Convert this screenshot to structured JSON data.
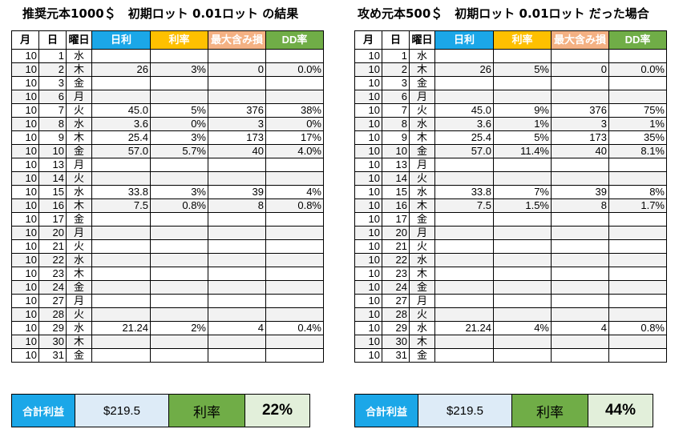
{
  "left": {
    "title": "推奨元本1000＄　初期ロット 0.01ロット の結果",
    "headers": [
      "月",
      "日",
      "曜日",
      "日利",
      "利率",
      "最大含み損",
      "DD率"
    ],
    "rows": [
      [
        "10",
        "1",
        "水",
        "",
        "",
        "",
        ""
      ],
      [
        "10",
        "2",
        "木",
        "26",
        "3%",
        "0",
        "0.0%"
      ],
      [
        "10",
        "3",
        "金",
        "",
        "",
        "",
        ""
      ],
      [
        "10",
        "6",
        "月",
        "",
        "",
        "",
        ""
      ],
      [
        "10",
        "7",
        "火",
        "45.0",
        "5%",
        "376",
        "38%"
      ],
      [
        "10",
        "8",
        "水",
        "3.6",
        "0%",
        "3",
        "0%"
      ],
      [
        "10",
        "9",
        "木",
        "25.4",
        "3%",
        "173",
        "17%"
      ],
      [
        "10",
        "10",
        "金",
        "57.0",
        "5.7%",
        "40",
        "4.0%"
      ],
      [
        "10",
        "13",
        "月",
        "",
        "",
        "",
        ""
      ],
      [
        "10",
        "14",
        "火",
        "",
        "",
        "",
        ""
      ],
      [
        "10",
        "15",
        "水",
        "33.8",
        "3%",
        "39",
        "4%"
      ],
      [
        "10",
        "16",
        "木",
        "7.5",
        "0.8%",
        "8",
        "0.8%"
      ],
      [
        "10",
        "17",
        "金",
        "",
        "",
        "",
        ""
      ],
      [
        "10",
        "20",
        "月",
        "",
        "",
        "",
        ""
      ],
      [
        "10",
        "21",
        "火",
        "",
        "",
        "",
        ""
      ],
      [
        "10",
        "22",
        "水",
        "",
        "",
        "",
        ""
      ],
      [
        "10",
        "23",
        "木",
        "",
        "",
        "",
        ""
      ],
      [
        "10",
        "24",
        "金",
        "",
        "",
        "",
        ""
      ],
      [
        "10",
        "27",
        "月",
        "",
        "",
        "",
        ""
      ],
      [
        "10",
        "28",
        "火",
        "",
        "",
        "",
        ""
      ],
      [
        "10",
        "29",
        "水",
        "21.24",
        "2%",
        "4",
        "0.4%"
      ],
      [
        "10",
        "30",
        "木",
        "",
        "",
        "",
        ""
      ],
      [
        "10",
        "31",
        "金",
        "",
        "",
        "",
        ""
      ]
    ],
    "summary": {
      "label": "合計利益",
      "total": "$219.5",
      "rate_label": "利率",
      "rate": "22%"
    }
  },
  "right": {
    "title": "攻め元本500＄　初期ロット 0.01ロット だった場合",
    "headers": [
      "月",
      "日",
      "曜日",
      "日利",
      "利率",
      "最大含み損",
      "DD率"
    ],
    "rows": [
      [
        "10",
        "1",
        "水",
        "",
        "",
        "",
        ""
      ],
      [
        "10",
        "2",
        "木",
        "26",
        "5%",
        "0",
        "0.0%"
      ],
      [
        "10",
        "3",
        "金",
        "",
        "",
        "",
        ""
      ],
      [
        "10",
        "6",
        "月",
        "",
        "",
        "",
        ""
      ],
      [
        "10",
        "7",
        "火",
        "45.0",
        "9%",
        "376",
        "75%"
      ],
      [
        "10",
        "8",
        "水",
        "3.6",
        "1%",
        "3",
        "1%"
      ],
      [
        "10",
        "9",
        "木",
        "25.4",
        "5%",
        "173",
        "35%"
      ],
      [
        "10",
        "10",
        "金",
        "57.0",
        "11.4%",
        "40",
        "8.1%"
      ],
      [
        "10",
        "13",
        "月",
        "",
        "",
        "",
        ""
      ],
      [
        "10",
        "14",
        "火",
        "",
        "",
        "",
        ""
      ],
      [
        "10",
        "15",
        "水",
        "33.8",
        "7%",
        "39",
        "8%"
      ],
      [
        "10",
        "16",
        "木",
        "7.5",
        "1.5%",
        "8",
        "1.7%"
      ],
      [
        "10",
        "17",
        "金",
        "",
        "",
        "",
        ""
      ],
      [
        "10",
        "20",
        "月",
        "",
        "",
        "",
        ""
      ],
      [
        "10",
        "21",
        "火",
        "",
        "",
        "",
        ""
      ],
      [
        "10",
        "22",
        "水",
        "",
        "",
        "",
        ""
      ],
      [
        "10",
        "23",
        "木",
        "",
        "",
        "",
        ""
      ],
      [
        "10",
        "24",
        "金",
        "",
        "",
        "",
        ""
      ],
      [
        "10",
        "27",
        "月",
        "",
        "",
        "",
        ""
      ],
      [
        "10",
        "28",
        "火",
        "",
        "",
        "",
        ""
      ],
      [
        "10",
        "29",
        "水",
        "21.24",
        "4%",
        "4",
        "0.8%"
      ],
      [
        "10",
        "30",
        "木",
        "",
        "",
        "",
        ""
      ],
      [
        "10",
        "31",
        "金",
        "",
        "",
        "",
        ""
      ]
    ],
    "summary": {
      "label": "合計利益",
      "total": "$219.5",
      "rate_label": "利率",
      "rate": "44%"
    }
  },
  "colors": {
    "daily_header": "#1ba7e8",
    "rate_header": "#ffc000",
    "maxdd_header": "#f4b183",
    "dd_header": "#70ad47",
    "summary_value_bg": "#ddebf7",
    "summary_rate_bg": "#e2efda"
  }
}
